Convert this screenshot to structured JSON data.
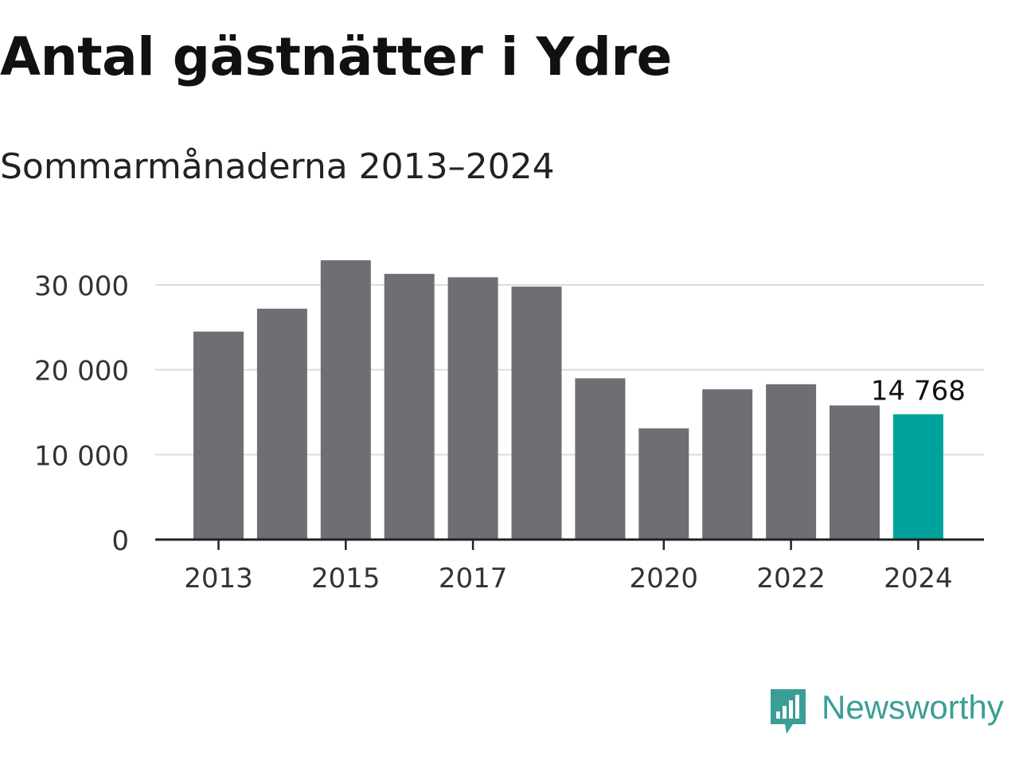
{
  "header": {
    "title": "Antal gästnätter i Ydre",
    "subtitle": "Sommarmånaderna 2013–2024"
  },
  "brand": {
    "name": "Newsworthy",
    "icon": "newsworthy-logo-icon",
    "color": "#3a9e96"
  },
  "colors": {
    "bar": "#6f6e74",
    "highlight": "#00a39b",
    "grid": "#dcdcdc",
    "axis": "#222222"
  },
  "chart_data": {
    "type": "bar",
    "categories": [
      "2013",
      "2014",
      "2015",
      "2016",
      "2017",
      "2018",
      "2019",
      "2020",
      "2021",
      "2022",
      "2023",
      "2024"
    ],
    "values": [
      24500,
      27200,
      32900,
      31300,
      30900,
      29800,
      19000,
      13100,
      17700,
      18300,
      15800,
      14768
    ],
    "x_tick_labels": [
      "2013",
      "2015",
      "2017",
      "2020",
      "2022",
      "2024"
    ],
    "y_ticks": [
      0,
      10000,
      20000,
      30000
    ],
    "y_tick_labels": [
      "0",
      "10 000",
      "20 000",
      "30 000"
    ],
    "ylim": [
      0,
      35000
    ],
    "grid": true,
    "highlight_index": 11,
    "data_label": "14 768",
    "xlabel": "",
    "ylabel": ""
  }
}
